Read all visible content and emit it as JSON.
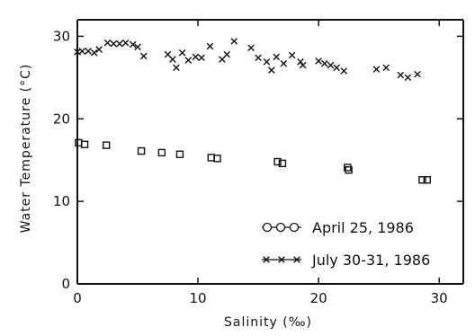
{
  "chart_data": {
    "type": "scatter",
    "title": "",
    "xlabel": "Salinity (‰)",
    "ylabel": "Water Temperature (°C)",
    "xlim": [
      0,
      32
    ],
    "ylim": [
      0,
      32
    ],
    "x_ticks": [
      0,
      10,
      20,
      30
    ],
    "y_ticks": [
      0,
      10,
      20,
      30
    ],
    "x_tick_labels": [
      "0",
      "10",
      "20",
      "30"
    ],
    "y_tick_labels": [
      "0",
      "10",
      "20",
      "30"
    ],
    "grid": false,
    "legend_position": "lower-right",
    "series": [
      {
        "name": "April 25, 1986",
        "marker": "square",
        "legend_marker": "o-o-o",
        "points": [
          [
            0.1,
            17.1
          ],
          [
            0.6,
            16.9
          ],
          [
            2.4,
            16.8
          ],
          [
            5.3,
            16.1
          ],
          [
            7.0,
            15.9
          ],
          [
            8.5,
            15.7
          ],
          [
            11.1,
            15.3
          ],
          [
            11.6,
            15.2
          ],
          [
            16.6,
            14.8
          ],
          [
            17.0,
            14.6
          ],
          [
            22.4,
            14.1
          ],
          [
            22.5,
            13.8
          ],
          [
            28.6,
            12.6
          ],
          [
            29.0,
            12.6
          ]
        ]
      },
      {
        "name": "July 30-31, 1986",
        "marker": "x",
        "legend_marker": "x-x-x",
        "points": [
          [
            0.0,
            28.1
          ],
          [
            0.4,
            28.2
          ],
          [
            0.9,
            28.2
          ],
          [
            1.4,
            28.0
          ],
          [
            1.8,
            28.4
          ],
          [
            2.5,
            29.2
          ],
          [
            3.0,
            29.1
          ],
          [
            3.5,
            29.1
          ],
          [
            4.0,
            29.2
          ],
          [
            4.6,
            29.0
          ],
          [
            5.0,
            28.7
          ],
          [
            5.5,
            27.6
          ],
          [
            7.5,
            27.8
          ],
          [
            7.9,
            27.2
          ],
          [
            8.2,
            26.2
          ],
          [
            8.7,
            28.0
          ],
          [
            9.2,
            27.1
          ],
          [
            9.8,
            27.5
          ],
          [
            10.3,
            27.4
          ],
          [
            11.0,
            28.8
          ],
          [
            12.0,
            27.2
          ],
          [
            12.4,
            27.8
          ],
          [
            13.0,
            29.4
          ],
          [
            14.4,
            28.6
          ],
          [
            15.0,
            27.4
          ],
          [
            15.7,
            26.9
          ],
          [
            16.1,
            25.9
          ],
          [
            16.5,
            27.5
          ],
          [
            17.1,
            26.7
          ],
          [
            17.8,
            27.7
          ],
          [
            18.5,
            26.9
          ],
          [
            18.7,
            26.5
          ],
          [
            20.0,
            27.0
          ],
          [
            20.5,
            26.7
          ],
          [
            21.0,
            26.5
          ],
          [
            21.5,
            26.2
          ],
          [
            22.1,
            25.8
          ],
          [
            24.8,
            26.0
          ],
          [
            25.6,
            26.2
          ],
          [
            26.8,
            25.3
          ],
          [
            27.4,
            25.0
          ],
          [
            28.2,
            25.4
          ]
        ]
      }
    ]
  }
}
